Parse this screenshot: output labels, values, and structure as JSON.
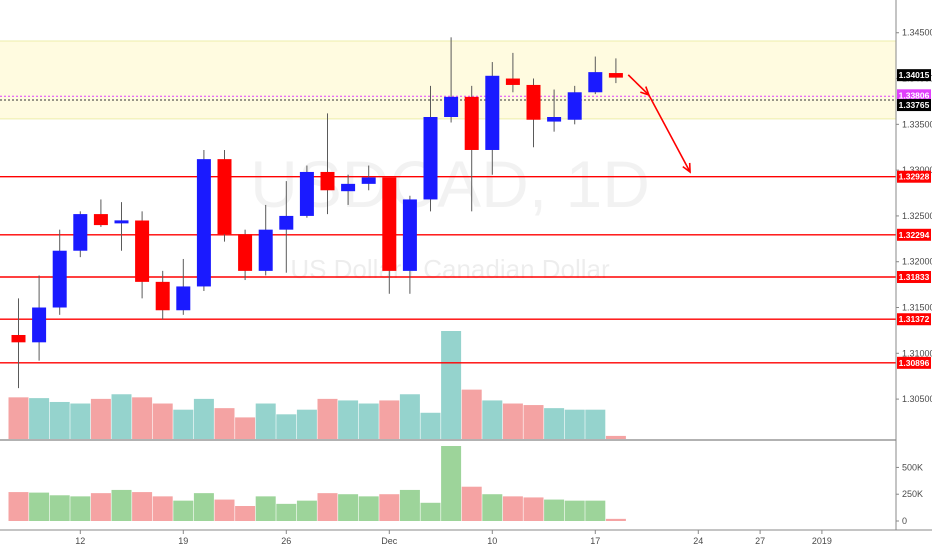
{
  "chart_data": {
    "type": "candlestick",
    "symbol_watermark": "USDCAD, 1D",
    "name_watermark": "US Dollar / Canadian Dollar",
    "price_axis": {
      "ylim": [
        1.3025,
        1.3465
      ],
      "ticks": [
        "1.34500",
        "1.34000",
        "1.33500",
        "1.33000",
        "1.32500",
        "1.32000",
        "1.31500",
        "1.31000",
        "1.30500"
      ],
      "tick_values": [
        1.345,
        1.34,
        1.335,
        1.33,
        1.325,
        1.32,
        1.315,
        1.31,
        1.305
      ]
    },
    "volume_axis": {
      "ylim": [
        0,
        700000
      ],
      "ticks": [
        "500K",
        "250K",
        "0"
      ],
      "tick_values": [
        500000,
        250000,
        0
      ]
    },
    "time_axis": {
      "labels": [
        "12",
        "19",
        "26",
        "Dec",
        "10",
        "17",
        "24",
        "27",
        "2019"
      ],
      "label_bar_index": [
        3,
        8,
        13,
        18,
        23,
        28,
        33,
        36,
        39
      ],
      "total_slots": 43
    },
    "candles": [
      {
        "o": 1.312,
        "h": 1.316,
        "l": 1.3062,
        "c": 1.3112
      },
      {
        "o": 1.3112,
        "h": 1.3185,
        "l": 1.3092,
        "c": 1.315
      },
      {
        "o": 1.315,
        "h": 1.3235,
        "l": 1.3142,
        "c": 1.3212
      },
      {
        "o": 1.3212,
        "h": 1.3255,
        "l": 1.3205,
        "c": 1.3252
      },
      {
        "o": 1.3252,
        "h": 1.3268,
        "l": 1.3238,
        "c": 1.324
      },
      {
        "o": 1.3242,
        "h": 1.3265,
        "l": 1.3212,
        "c": 1.3245
      },
      {
        "o": 1.3245,
        "h": 1.3255,
        "l": 1.316,
        "c": 1.3178
      },
      {
        "o": 1.3178,
        "h": 1.319,
        "l": 1.3137,
        "c": 1.3147
      },
      {
        "o": 1.3147,
        "h": 1.3203,
        "l": 1.3142,
        "c": 1.3173
      },
      {
        "o": 1.3173,
        "h": 1.3322,
        "l": 1.3168,
        "c": 1.3312
      },
      {
        "o": 1.3312,
        "h": 1.3322,
        "l": 1.3222,
        "c": 1.323
      },
      {
        "o": 1.323,
        "h": 1.3235,
        "l": 1.318,
        "c": 1.319
      },
      {
        "o": 1.319,
        "h": 1.3262,
        "l": 1.3185,
        "c": 1.3235
      },
      {
        "o": 1.3235,
        "h": 1.3288,
        "l": 1.3188,
        "c": 1.325
      },
      {
        "o": 1.325,
        "h": 1.3305,
        "l": 1.3248,
        "c": 1.3298
      },
      {
        "o": 1.3298,
        "h": 1.3362,
        "l": 1.3252,
        "c": 1.3278
      },
      {
        "o": 1.3277,
        "h": 1.3295,
        "l": 1.3262,
        "c": 1.3285
      },
      {
        "o": 1.3285,
        "h": 1.3305,
        "l": 1.3278,
        "c": 1.3292
      },
      {
        "o": 1.3292,
        "h": 1.3292,
        "l": 1.3165,
        "c": 1.319
      },
      {
        "o": 1.319,
        "h": 1.3272,
        "l": 1.3165,
        "c": 1.3268
      },
      {
        "o": 1.3268,
        "h": 1.3392,
        "l": 1.3255,
        "c": 1.3358
      },
      {
        "o": 1.3358,
        "h": 1.3445,
        "l": 1.3352,
        "c": 1.338
      },
      {
        "o": 1.338,
        "h": 1.3392,
        "l": 1.3255,
        "c": 1.3322
      },
      {
        "o": 1.3322,
        "h": 1.3418,
        "l": 1.3295,
        "c": 1.3403
      },
      {
        "o": 1.34,
        "h": 1.3428,
        "l": 1.3385,
        "c": 1.3393
      },
      {
        "o": 1.3393,
        "h": 1.34,
        "l": 1.3325,
        "c": 1.3355
      },
      {
        "o": 1.3353,
        "h": 1.3388,
        "l": 1.3342,
        "c": 1.3358
      },
      {
        "o": 1.3355,
        "h": 1.3392,
        "l": 1.335,
        "c": 1.3385
      },
      {
        "o": 1.3385,
        "h": 1.3424,
        "l": 1.3383,
        "c": 1.3407
      },
      {
        "o": 1.3406,
        "h": 1.3422,
        "l": 1.3395,
        "c": 1.3401
      }
    ],
    "volumes": [
      270000,
      265000,
      240000,
      230000,
      260000,
      290000,
      270000,
      230000,
      190000,
      260000,
      200000,
      140000,
      230000,
      160000,
      190000,
      260000,
      250000,
      230000,
      250000,
      290000,
      170000,
      700000,
      320000,
      250000,
      230000,
      220000,
      200000,
      190000,
      190000,
      20000
    ],
    "horizontal_levels": [
      {
        "price": 1.32928,
        "label": "1.32928"
      },
      {
        "price": 1.32294,
        "label": "1.32294"
      },
      {
        "price": 1.31833,
        "label": "1.31833"
      },
      {
        "price": 1.31372,
        "label": "1.31372"
      },
      {
        "price": 1.30896,
        "label": "1.30896"
      }
    ],
    "resistance_zone": {
      "from": 1.3356,
      "to": 1.3441
    },
    "price_tags": [
      {
        "price": 1.34015,
        "label": "1.34015",
        "color": "#000000"
      },
      {
        "price": 1.33806,
        "label": "1.33806",
        "color": "#e040fb"
      },
      {
        "price": 1.33765,
        "label": "1.33765",
        "color": "#000000"
      }
    ],
    "projection_arrow": [
      {
        "bar": 29.6,
        "price": 1.3404
      },
      {
        "bar": 30.6,
        "price": 1.3382
      },
      {
        "bar": 32.6,
        "price": 1.3298
      }
    ],
    "colors": {
      "up": "#1a1aff",
      "down": "#ff0000",
      "wick": "#5a5a5a",
      "level_line": "#ff0000",
      "zone_fill": "#fffbe0",
      "zone_border": "#eeeeaa",
      "vol_up_main": "#95d3cd",
      "vol_down_main": "#f4a3a3",
      "vol_up_pane": "#9dd49a",
      "vol_down_pane": "#f5a3a3"
    }
  }
}
